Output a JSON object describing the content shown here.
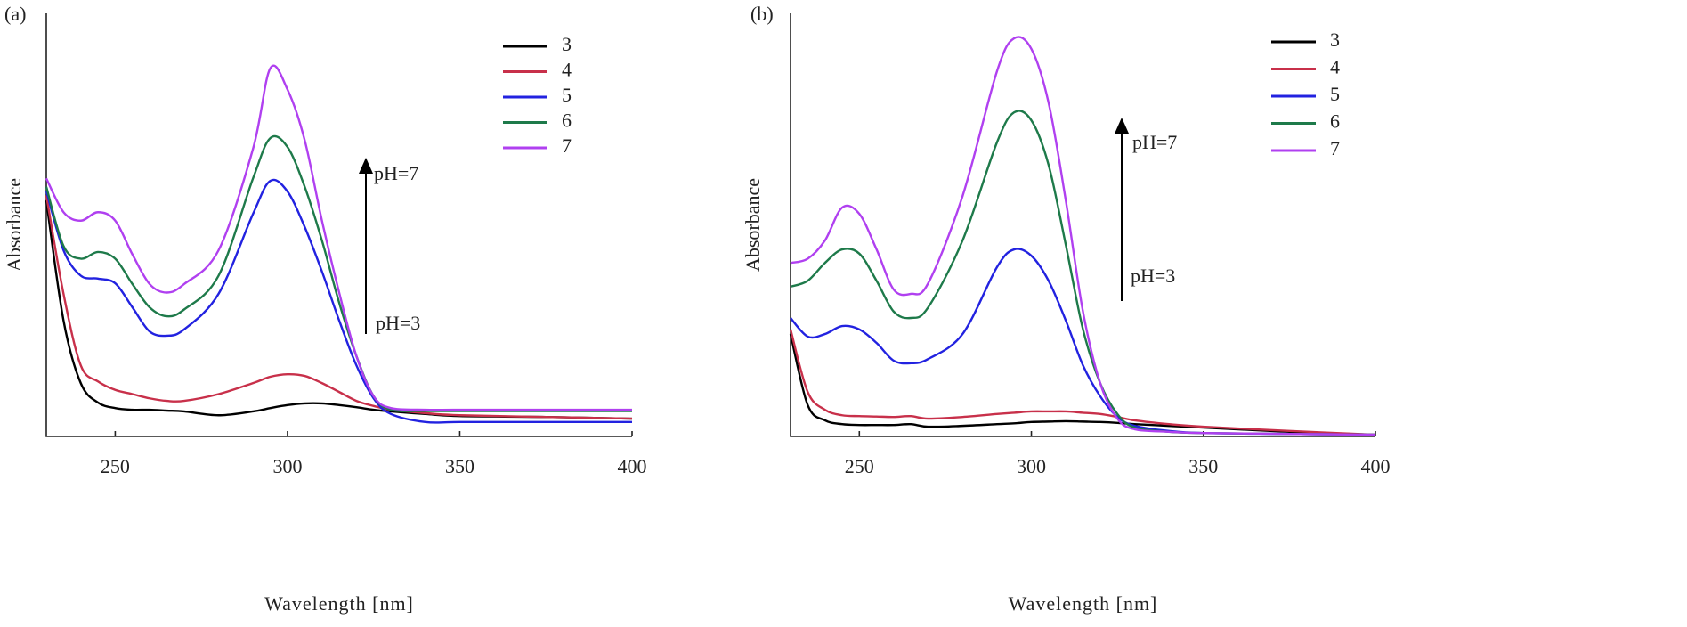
{
  "chart_data": [
    {
      "type": "line",
      "label": "(a)",
      "xlabel": "Wavelength [nm]",
      "ylabel": "Absorbance",
      "annotations": [
        "pH=7",
        "pH=3"
      ],
      "xlim": [
        230,
        400
      ],
      "ylim": [
        0,
        1
      ],
      "xticks": [
        250,
        300,
        350,
        400
      ],
      "x": [
        230,
        235,
        240,
        245,
        250,
        255,
        260,
        265,
        270,
        280,
        290,
        295,
        300,
        305,
        310,
        315,
        320,
        325,
        330,
        340,
        350,
        375,
        400
      ],
      "series": [
        {
          "name": "3",
          "color": "#000000",
          "values": [
            0.558,
            0.274,
            0.126,
            0.08,
            0.067,
            0.063,
            0.063,
            0.061,
            0.059,
            0.05,
            0.059,
            0.067,
            0.074,
            0.078,
            0.078,
            0.074,
            0.069,
            0.063,
            0.059,
            0.053,
            0.048,
            0.046,
            0.042
          ]
        },
        {
          "name": "4",
          "color": "#c8304a",
          "values": [
            0.57,
            0.337,
            0.168,
            0.13,
            0.11,
            0.1,
            0.09,
            0.084,
            0.084,
            0.1,
            0.126,
            0.141,
            0.147,
            0.143,
            0.126,
            0.105,
            0.084,
            0.072,
            0.063,
            0.055,
            0.05,
            0.046,
            0.042
          ]
        },
        {
          "name": "5",
          "color": "#2222e0",
          "values": [
            0.58,
            0.44,
            0.38,
            0.373,
            0.362,
            0.305,
            0.248,
            0.238,
            0.253,
            0.337,
            0.526,
            0.604,
            0.579,
            0.495,
            0.39,
            0.274,
            0.168,
            0.09,
            0.053,
            0.034,
            0.034,
            0.034,
            0.034
          ]
        },
        {
          "name": "6",
          "color": "#1e7a4a",
          "values": [
            0.59,
            0.45,
            0.42,
            0.436,
            0.42,
            0.36,
            0.305,
            0.284,
            0.3,
            0.38,
            0.61,
            0.705,
            0.684,
            0.59,
            0.463,
            0.316,
            0.19,
            0.095,
            0.063,
            0.06,
            0.06,
            0.06,
            0.06
          ]
        },
        {
          "name": "7",
          "color": "#b040f0",
          "values": [
            0.61,
            0.53,
            0.51,
            0.53,
            0.51,
            0.43,
            0.36,
            0.34,
            0.36,
            0.44,
            0.68,
            0.87,
            0.82,
            0.7,
            0.51,
            0.34,
            0.19,
            0.095,
            0.067,
            0.063,
            0.063,
            0.063,
            0.063
          ]
        }
      ]
    },
    {
      "type": "line",
      "label": "(b)",
      "xlabel": "Wavelength [nm]",
      "ylabel": "Absorbance",
      "annotations": [
        "pH=7",
        "pH=3"
      ],
      "xlim": [
        230,
        400
      ],
      "ylim": [
        0,
        1
      ],
      "xticks": [
        250,
        300,
        350,
        400
      ],
      "x": [
        230,
        235,
        240,
        245,
        250,
        255,
        260,
        265,
        270,
        280,
        290,
        295,
        300,
        305,
        310,
        315,
        320,
        325,
        330,
        340,
        350,
        375,
        400
      ],
      "series": [
        {
          "name": "3",
          "color": "#000000",
          "values": [
            0.242,
            0.074,
            0.038,
            0.029,
            0.027,
            0.027,
            0.027,
            0.029,
            0.023,
            0.025,
            0.029,
            0.031,
            0.034,
            0.035,
            0.036,
            0.035,
            0.034,
            0.032,
            0.029,
            0.025,
            0.021,
            0.011,
            0.004
          ]
        },
        {
          "name": "4",
          "color": "#c8304a",
          "values": [
            0.253,
            0.105,
            0.063,
            0.05,
            0.048,
            0.047,
            0.046,
            0.048,
            0.042,
            0.046,
            0.053,
            0.056,
            0.059,
            0.059,
            0.059,
            0.056,
            0.053,
            0.046,
            0.038,
            0.029,
            0.023,
            0.013,
            0.004
          ]
        },
        {
          "name": "5",
          "color": "#2222e0",
          "values": [
            0.28,
            0.236,
            0.242,
            0.261,
            0.253,
            0.221,
            0.179,
            0.173,
            0.183,
            0.242,
            0.4,
            0.442,
            0.427,
            0.368,
            0.274,
            0.168,
            0.095,
            0.046,
            0.025,
            0.013,
            0.008,
            0.006,
            0.004
          ]
        },
        {
          "name": "6",
          "color": "#1e7a4a",
          "values": [
            0.354,
            0.368,
            0.41,
            0.442,
            0.432,
            0.368,
            0.295,
            0.28,
            0.305,
            0.463,
            0.695,
            0.766,
            0.747,
            0.642,
            0.453,
            0.253,
            0.126,
            0.053,
            0.021,
            0.011,
            0.008,
            0.006,
            0.004
          ]
        },
        {
          "name": "7",
          "color": "#b040f0",
          "values": [
            0.41,
            0.42,
            0.463,
            0.541,
            0.526,
            0.442,
            0.347,
            0.337,
            0.362,
            0.568,
            0.863,
            0.941,
            0.916,
            0.789,
            0.558,
            0.295,
            0.126,
            0.042,
            0.017,
            0.011,
            0.008,
            0.006,
            0.004
          ]
        }
      ]
    }
  ]
}
